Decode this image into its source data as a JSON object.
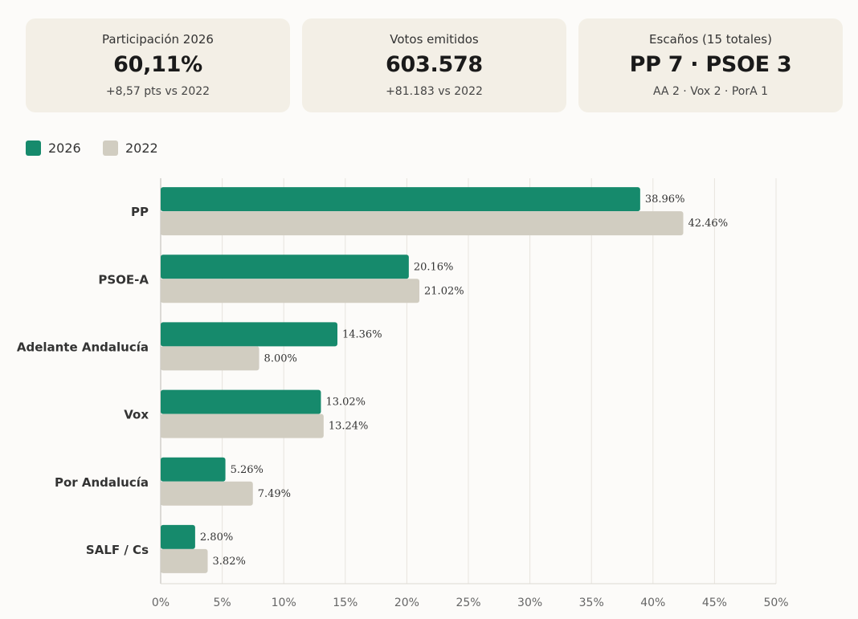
{
  "cards": [
    {
      "label": "Participación 2026",
      "value": "60,11%",
      "sub": "+8,57 pts vs 2022"
    },
    {
      "label": "Votos emitidos",
      "value": "603.578",
      "sub": "+81.183 vs 2022"
    },
    {
      "label": "Escaños (15 totales)",
      "value": "PP 7 · PSOE 3",
      "sub": "AA 2 · Vox 2 · PorA 1"
    }
  ],
  "legend": [
    {
      "label": "2026",
      "color": "#168a6c"
    },
    {
      "label": "2022",
      "color": "#d1cdc1"
    }
  ],
  "chart_data": {
    "type": "bar",
    "orientation": "horizontal",
    "categories": [
      "PP",
      "PSOE-A",
      "Adelante Andalucía",
      "Vox",
      "Por Andalucía",
      "SALF / Cs"
    ],
    "series": [
      {
        "name": "2026",
        "color": "#168a6c",
        "values": [
          38.96,
          20.16,
          14.36,
          13.02,
          5.26,
          2.8
        ],
        "labels": [
          "38.96%",
          "20.16%",
          "14.36%",
          "13.02%",
          "5.26%",
          "2.80%"
        ]
      },
      {
        "name": "2022",
        "color": "#d1cdc1",
        "values": [
          42.46,
          21.02,
          8.0,
          13.24,
          7.49,
          3.82
        ],
        "labels": [
          "42.46%",
          "21.02%",
          "8.00%",
          "13.24%",
          "7.49%",
          "3.82%"
        ]
      }
    ],
    "xlim": [
      0,
      50
    ],
    "xticks": [
      "0%",
      "5%",
      "10%",
      "15%",
      "20%",
      "25%",
      "30%",
      "35%",
      "40%",
      "45%",
      "50%"
    ],
    "grid": "vertical",
    "legend_position": "top-left"
  }
}
